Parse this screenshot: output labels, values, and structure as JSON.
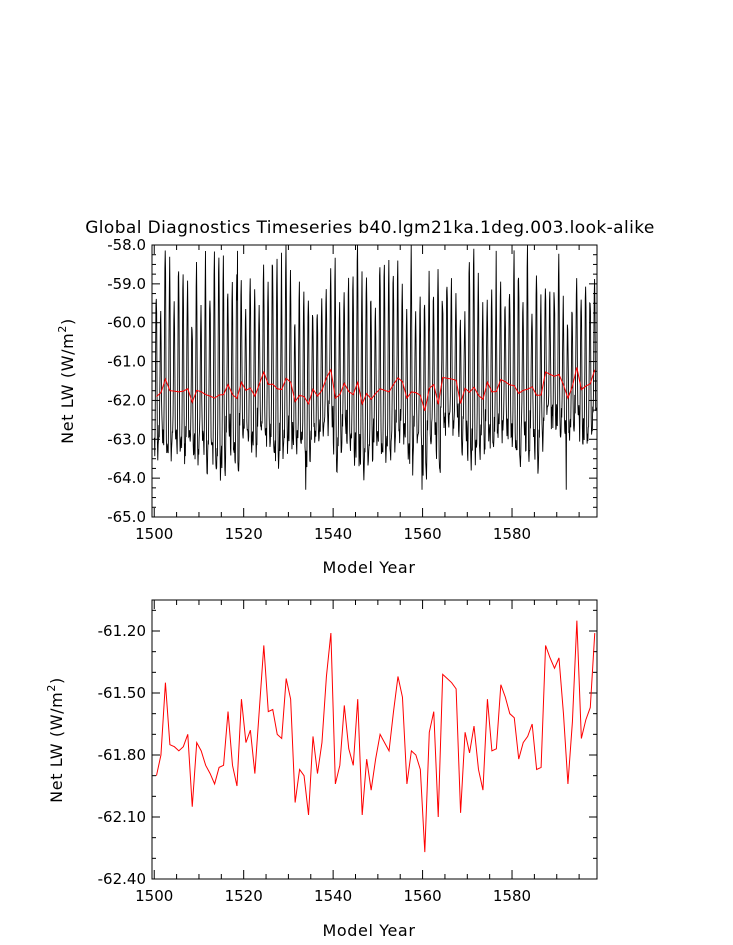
{
  "chart_data": [
    {
      "type": "line",
      "title": "Global Diagnostics Timeseries b40.lgm21ka.1deg.003.look-alike",
      "xlabel": "Model Year",
      "ylabel": "Net LW (W/m²)",
      "ylabel_base": "Net LW (W/m",
      "ylabel_sup": "2",
      "ylabel_close": ")",
      "xlim": [
        1499.5,
        1599
      ],
      "ylim": [
        -65.0,
        -58.0
      ],
      "xticks": [
        1500,
        1520,
        1540,
        1560,
        1580
      ],
      "xtick_labels": [
        "1500",
        "1520",
        "1540",
        "1560",
        "1580"
      ],
      "yticks": [
        -65.0,
        -64.0,
        -63.0,
        -62.0,
        -61.0,
        -60.0,
        -59.0,
        -58.0
      ],
      "ytick_labels": [
        "-65.0",
        "-64.0",
        "-63.0",
        "-62.0",
        "-61.0",
        "-60.0",
        "-59.0",
        "-58.0"
      ],
      "grid": false,
      "legend": "none",
      "series": [
        {
          "color": "#000000",
          "resolution": "monthly",
          "monthly_profile": [
            -62.7,
            -62.9,
            -62.1,
            -60.8,
            -59.4,
            -59.0,
            -59.8,
            -61.5,
            -62.7,
            -63.1,
            -63.0,
            -62.8
          ],
          "extremes": [
            {
              "x": 1518.6,
              "y": -58.15
            },
            {
              "x": 1528.5,
              "y": -58.2
            },
            {
              "x": 1533.9,
              "y": -64.3
            },
            {
              "x": 1576.5,
              "y": -58.15
            },
            {
              "x": 1559.9,
              "y": -64.3
            },
            {
              "x": 1592.1,
              "y": -64.3
            }
          ]
        },
        {
          "color": "#ff0000",
          "resolution": "annual",
          "ref": "annual_series"
        }
      ]
    },
    {
      "type": "line",
      "title": "",
      "xlabel": "Model Year",
      "ylabel": "Net LW (W/m²)",
      "ylabel_base": "Net LW (W/m",
      "ylabel_sup": "2",
      "ylabel_close": ")",
      "xlim": [
        1499.5,
        1599
      ],
      "ylim": [
        -62.4,
        -61.05
      ],
      "xticks": [
        1500,
        1520,
        1540,
        1560,
        1580
      ],
      "xtick_labels": [
        "1500",
        "1520",
        "1540",
        "1560",
        "1580"
      ],
      "yticks": [
        -62.4,
        -62.1,
        -61.8,
        -61.5,
        -61.2
      ],
      "ytick_labels": [
        "-62.40",
        "-62.10",
        "-61.80",
        "-61.50",
        "-61.20"
      ],
      "grid": false,
      "legend": "none",
      "series": [
        {
          "color": "#ff0000",
          "resolution": "annual",
          "ref": "annual_series"
        }
      ]
    }
  ],
  "annual_series": {
    "x_start": 1500,
    "values": [
      -61.9,
      -61.8,
      -61.45,
      -61.75,
      -61.76,
      -61.78,
      -61.76,
      -61.7,
      -62.05,
      -61.74,
      -61.78,
      -61.85,
      -61.89,
      -61.94,
      -61.86,
      -61.85,
      -61.59,
      -61.85,
      -61.95,
      -61.53,
      -61.74,
      -61.68,
      -61.89,
      -61.58,
      -61.27,
      -61.59,
      -61.58,
      -61.7,
      -61.72,
      -61.43,
      -61.53,
      -62.03,
      -61.87,
      -61.9,
      -62.09,
      -61.71,
      -61.89,
      -61.74,
      -61.42,
      -61.21,
      -61.94,
      -61.85,
      -61.56,
      -61.77,
      -61.85,
      -61.53,
      -62.09,
      -61.82,
      -61.97,
      -61.82,
      -61.7,
      -61.74,
      -61.78,
      -61.59,
      -61.42,
      -61.52,
      -61.94,
      -61.78,
      -61.8,
      -61.87,
      -62.27,
      -61.69,
      -61.59,
      -62.1,
      -61.41,
      -61.43,
      -61.45,
      -61.48,
      -62.08,
      -61.69,
      -61.79,
      -61.66,
      -61.87,
      -61.97,
      -61.53,
      -61.78,
      -61.77,
      -61.46,
      -61.52,
      -61.6,
      -61.62,
      -61.82,
      -61.74,
      -61.71,
      -61.65,
      -61.87,
      -61.86,
      -61.27,
      -61.33,
      -61.38,
      -61.33,
      -61.6,
      -61.94,
      -61.64,
      -61.15,
      -61.72,
      -61.63,
      -61.57,
      -61.21
    ]
  }
}
